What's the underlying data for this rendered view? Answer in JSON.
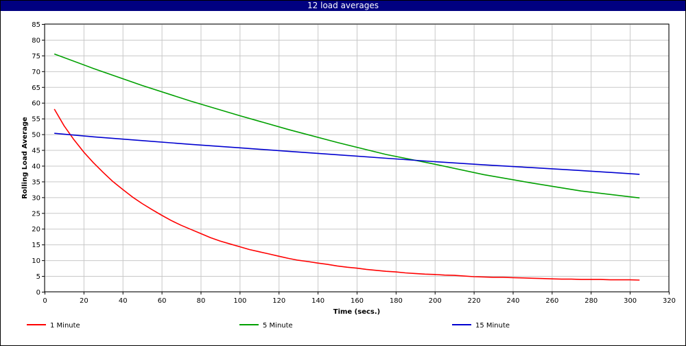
{
  "chart_data": {
    "type": "line",
    "title": "12 load averages",
    "xlabel": "Time (secs.)",
    "ylabel": "Rolling Load Average",
    "xlim": [
      0,
      320
    ],
    "ylim": [
      0,
      85
    ],
    "xticks": [
      0,
      20,
      40,
      60,
      80,
      100,
      120,
      140,
      160,
      180,
      200,
      220,
      240,
      260,
      280,
      300,
      320
    ],
    "yticks": [
      0,
      5,
      10,
      15,
      20,
      25,
      30,
      35,
      40,
      45,
      50,
      55,
      60,
      65,
      70,
      75,
      80,
      85
    ],
    "grid": true,
    "legend_position": "bottom",
    "series": [
      {
        "name": "1 Minute",
        "color": "#ff0000",
        "x": [
          5,
          10,
          15,
          20,
          25,
          30,
          35,
          40,
          45,
          50,
          55,
          60,
          65,
          70,
          75,
          80,
          85,
          90,
          95,
          100,
          105,
          110,
          115,
          120,
          125,
          130,
          135,
          140,
          145,
          150,
          155,
          160,
          165,
          170,
          175,
          180,
          185,
          190,
          195,
          200,
          205,
          210,
          215,
          220,
          225,
          230,
          235,
          240,
          245,
          250,
          255,
          260,
          265,
          270,
          275,
          280,
          285,
          290,
          295,
          300,
          305
        ],
        "values": [
          58.0,
          52.7,
          48.3,
          44.4,
          41.0,
          37.9,
          35.0,
          32.5,
          30.1,
          28.0,
          26.1,
          24.3,
          22.6,
          21.1,
          19.8,
          18.5,
          17.2,
          16.1,
          15.2,
          14.3,
          13.4,
          12.7,
          12.0,
          11.3,
          10.6,
          10.0,
          9.6,
          9.1,
          8.7,
          8.2,
          7.8,
          7.5,
          7.1,
          6.8,
          6.5,
          6.3,
          6.0,
          5.8,
          5.6,
          5.5,
          5.3,
          5.2,
          5.0,
          4.8,
          4.7,
          4.6,
          4.6,
          4.5,
          4.4,
          4.3,
          4.2,
          4.1,
          4.0,
          4.0,
          3.9,
          3.9,
          3.9,
          3.8,
          3.8,
          3.8,
          3.7
        ]
      },
      {
        "name": "5 Minute",
        "color": "#00a000",
        "x": [
          5,
          25,
          50,
          75,
          100,
          125,
          150,
          175,
          200,
          225,
          250,
          275,
          305
        ],
        "values": [
          75.5,
          70.9,
          65.5,
          60.5,
          55.9,
          51.5,
          47.4,
          43.6,
          40.5,
          37.2,
          34.5,
          32.0,
          29.8
        ]
      },
      {
        "name": "15 Minute",
        "color": "#0000d0",
        "x": [
          5,
          25,
          50,
          75,
          100,
          125,
          150,
          175,
          200,
          225,
          250,
          275,
          305
        ],
        "values": [
          50.3,
          49.2,
          48.0,
          46.8,
          45.7,
          44.6,
          43.5,
          42.4,
          41.3,
          40.3,
          39.4,
          38.5,
          37.3
        ]
      }
    ]
  }
}
